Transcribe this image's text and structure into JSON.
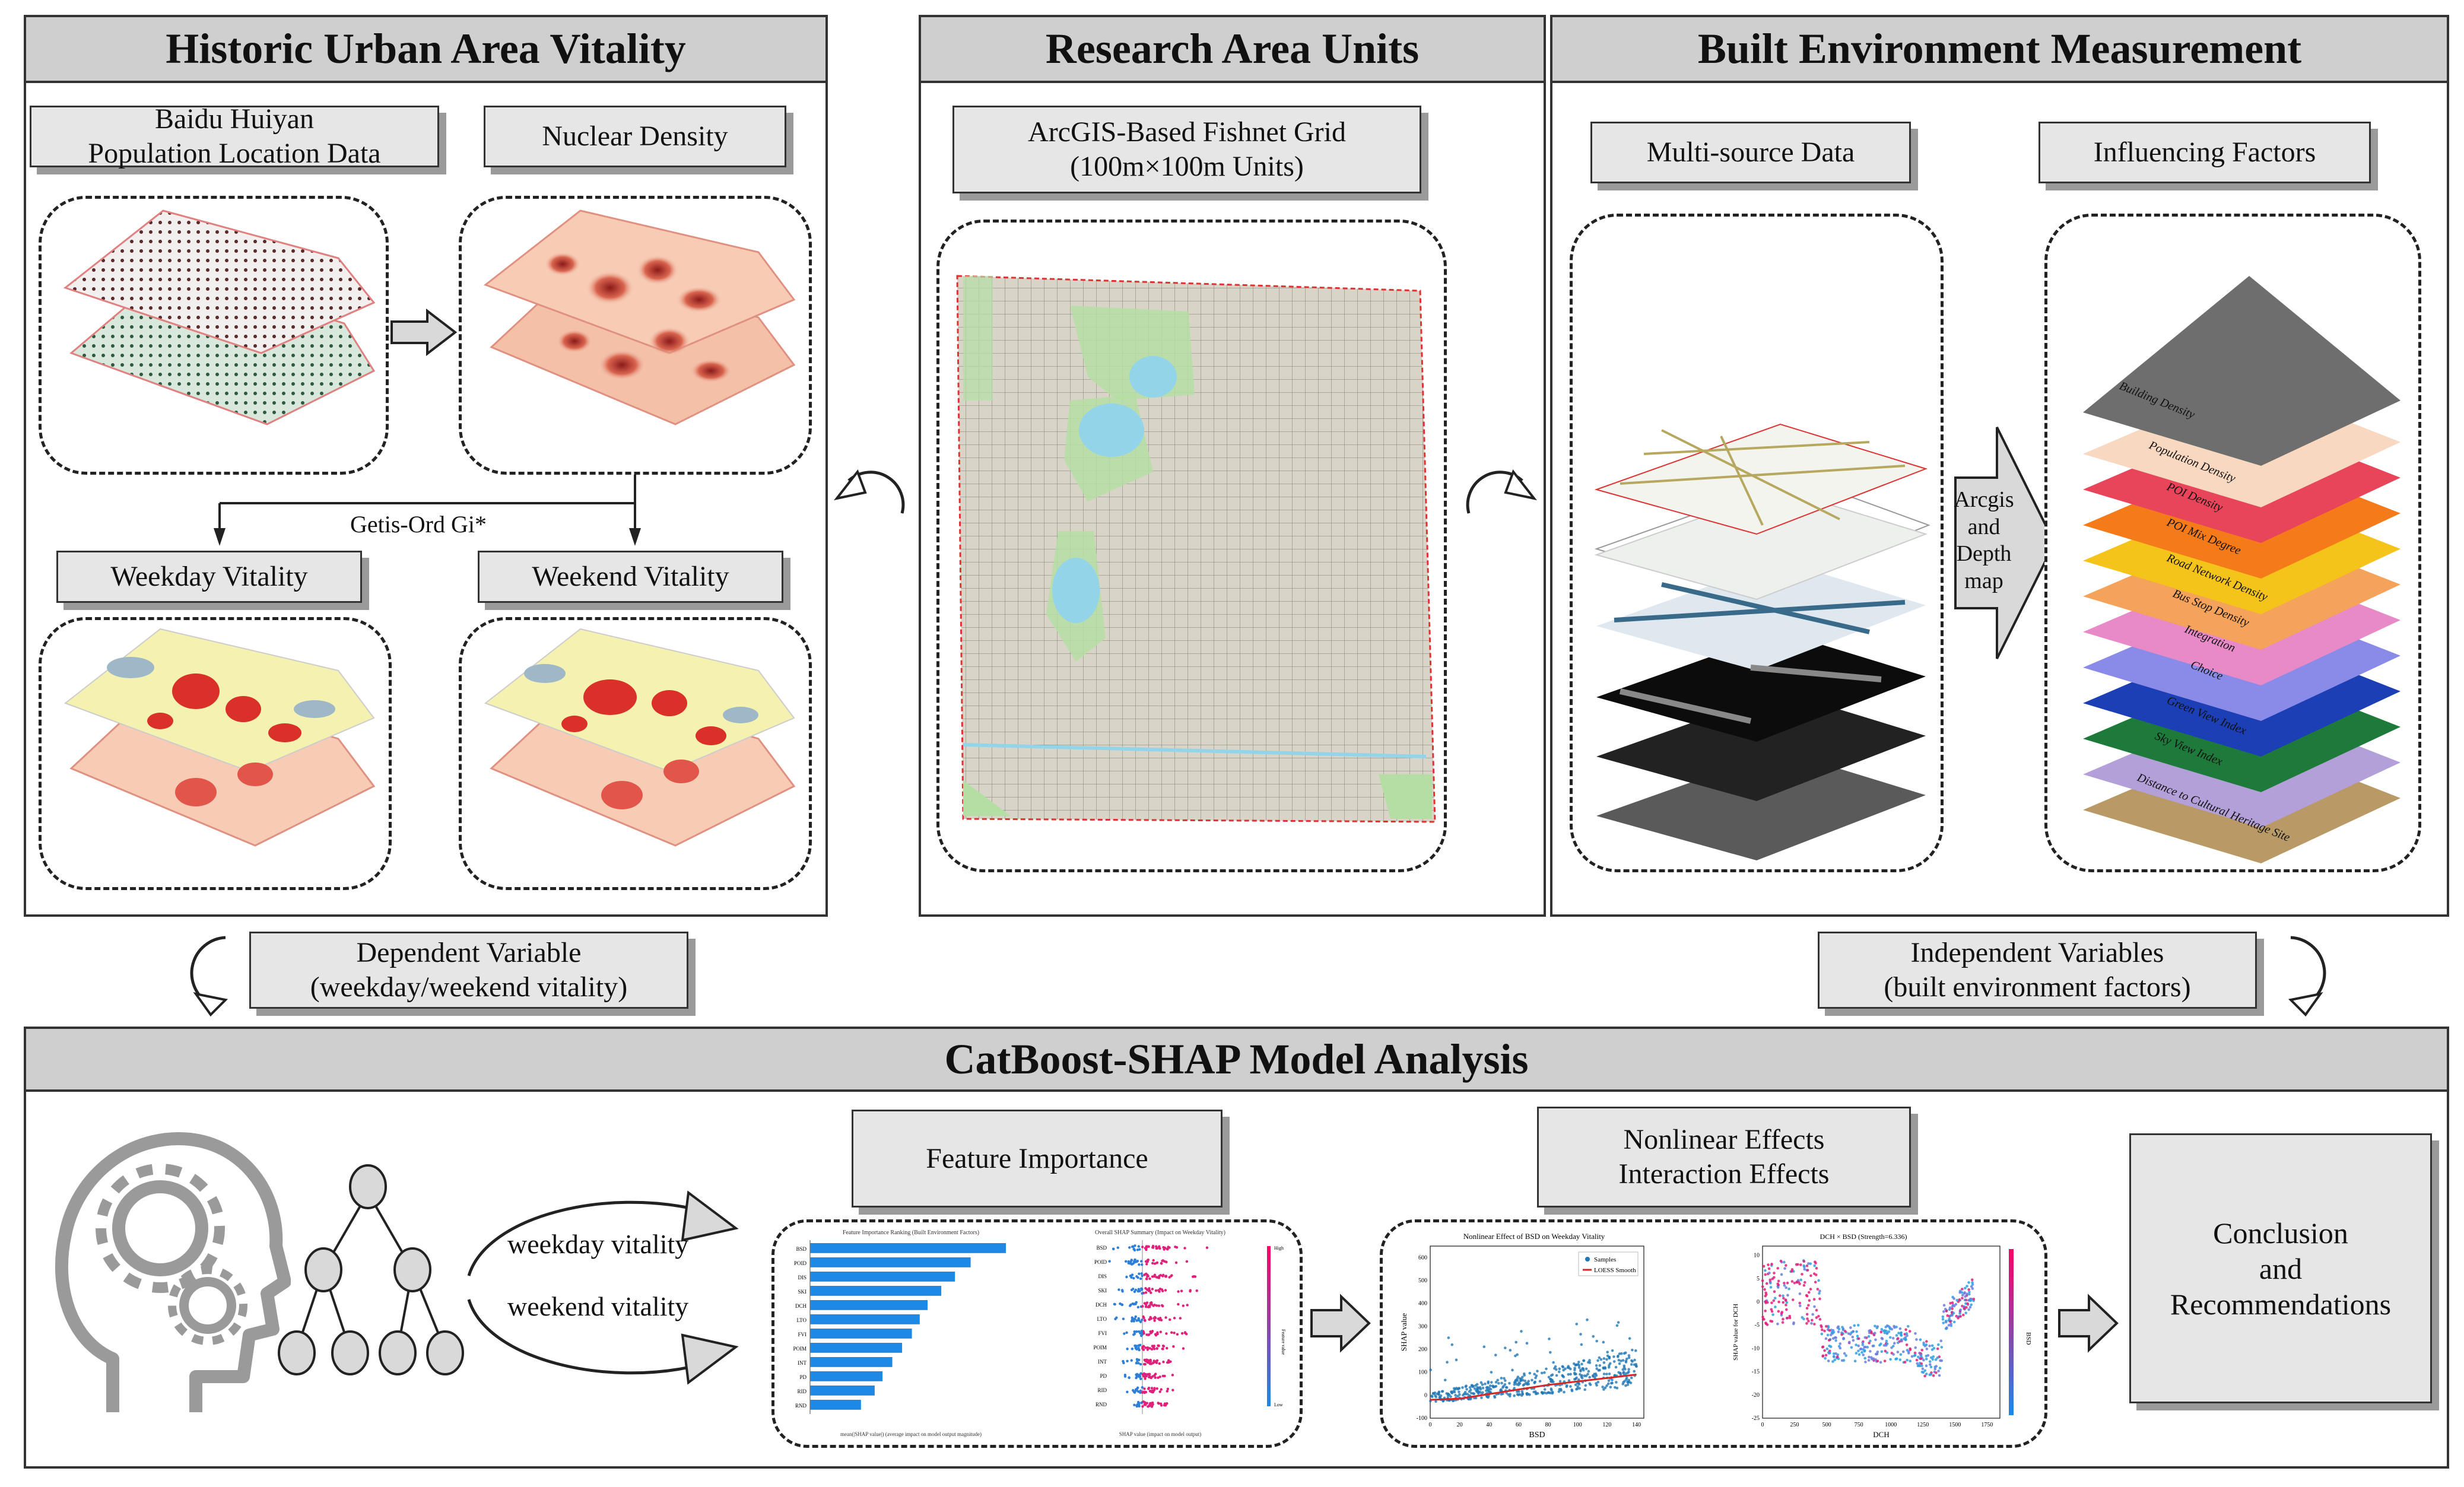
{
  "panels": {
    "vitality": {
      "title": "Historic Urban Area Vitality",
      "baidu_label": "Baidu Huiyan\nPopulation Location Data",
      "nuclear_label": "Nuclear Density",
      "getis_label": "Getis-Ord Gi*",
      "weekday_label": "Weekday Vitality",
      "weekend_label": "Weekend Vitality"
    },
    "research": {
      "title": "Research Area Units",
      "fishnet_label": "ArcGIS-Based Fishnet Grid\n(100m×100m Units)"
    },
    "built": {
      "title": "Built Environment Measurement",
      "multisource_label": "Multi-source Data",
      "factors_label": "Influencing Factors",
      "arrow_label": "Arcgis\nand\nDepth\nmap",
      "layer_labels": [
        "Building Density",
        "Population Density",
        "POI Density",
        "POI Mix Degree",
        "Road Network Density",
        "Bus Stop Density",
        "Integration",
        "Choice",
        "Green View Index",
        "Sky View Index",
        "Distance to Cultural Heritage Site"
      ]
    },
    "middle": {
      "dependent_label": "Dependent Variable\n(weekday/weekend vitality)",
      "independent_label": "Independent Variables\n(built environment factors)"
    },
    "catboost": {
      "title": "CatBoost-SHAP Model Analysis",
      "weekday_text": "weekday vitality",
      "weekend_text": "weekend vitality",
      "feature_importance_label": "Feature Importance",
      "nonlinear_label": "Nonlinear Effects\nInteraction Effects",
      "conclusion_label": "Conclusion\nand\nRecommendations"
    }
  },
  "colors": {
    "panel_title_bg": "#cfcfcf",
    "label_bg": "#e6e6e6",
    "bar_blue": "#1e88e5",
    "loess_red": "#d62728"
  },
  "chart_data": [
    {
      "type": "bar",
      "title": "Feature Importance Ranking (Built Environment Factors)",
      "xlabel": "mean(|SHAP value|) (average impact on model output magnitude)",
      "ylabel": "",
      "categories": [
        "BSD",
        "POID",
        "DIS",
        "SKI",
        "DCH",
        "LTO",
        "FVI",
        "POIM",
        "INT",
        "PD",
        "RID",
        "RND"
      ],
      "values": [
        100,
        82,
        74,
        67,
        60,
        56,
        52,
        47,
        42,
        37,
        33,
        26
      ]
    },
    {
      "type": "scatter",
      "title": "Overall SHAP Summary (Impact on Weekday Vitality)",
      "xlabel": "SHAP value (impact on model output)",
      "ylabel": "",
      "categories": [
        "BSD",
        "POID",
        "DIS",
        "SKI",
        "DCH",
        "LTO",
        "FVI",
        "POIM",
        "INT",
        "PD",
        "RID",
        "RND"
      ],
      "legend": [
        "High",
        "Low"
      ],
      "colorbar_label": "Feature value"
    },
    {
      "type": "scatter",
      "title": "Nonlinear Effect of BSD on Weekday Vitality",
      "xlabel": "BSD",
      "ylabel": "SHAP value",
      "legend": [
        "Samples",
        "LOESS Smooth"
      ],
      "x_ticks": [
        0,
        20,
        40,
        60,
        80,
        100,
        120,
        140
      ],
      "y_ticks": [
        -100,
        0,
        100,
        200,
        300,
        400,
        500,
        600
      ],
      "xlim": [
        0,
        145
      ],
      "ylim": [
        -100,
        650
      ],
      "loess_x": [
        0,
        20,
        40,
        60,
        80,
        100,
        120,
        140
      ],
      "loess_y": [
        -20,
        -15,
        5,
        25,
        45,
        60,
        75,
        90
      ]
    },
    {
      "type": "scatter",
      "title": "DCH × BSD (Strength=6.336)",
      "xlabel": "DCH",
      "ylabel": "SHAP value for DCH",
      "colorbar_label": "BSD",
      "x_ticks": [
        0,
        250,
        500,
        750,
        1000,
        1250,
        1500,
        1750
      ],
      "y_ticks": [
        -25,
        -20,
        -15,
        -10,
        -5,
        0,
        5,
        10
      ],
      "xlim": [
        0,
        1850
      ],
      "ylim": [
        -25,
        12
      ]
    }
  ]
}
